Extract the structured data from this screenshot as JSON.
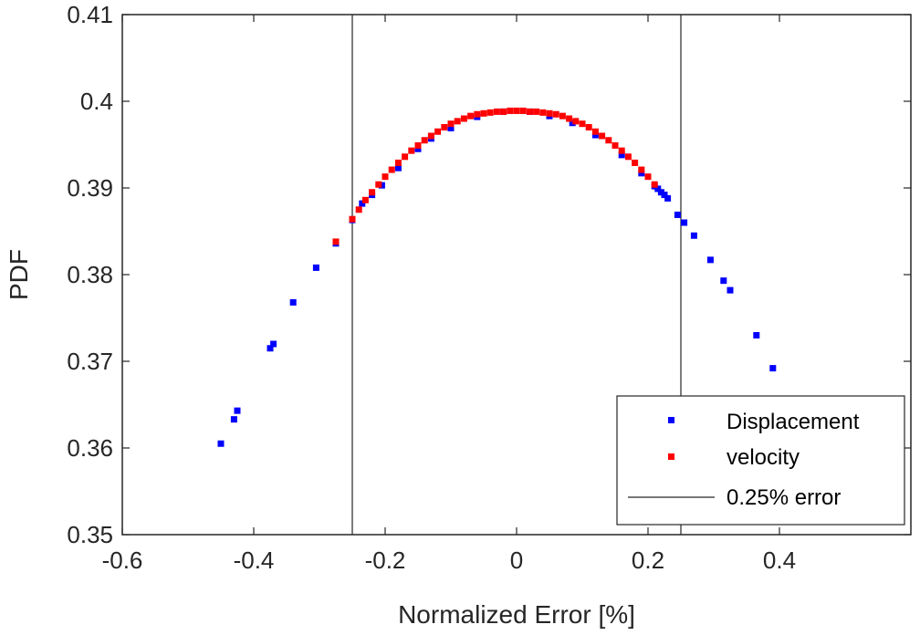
{
  "chart_data": {
    "type": "scatter",
    "title": "",
    "xlabel": "Normalized Error [%]",
    "ylabel": "PDF",
    "xlim": [
      -0.6,
      0.6
    ],
    "ylim": [
      0.35,
      0.41
    ],
    "xticks": [
      -0.6,
      -0.4,
      -0.2,
      0,
      0.2,
      0.4
    ],
    "xtick_labels": [
      "-0.6",
      "-0.4",
      "-0.2",
      "0",
      "0.2",
      "0.4"
    ],
    "yticks": [
      0.35,
      0.36,
      0.37,
      0.38,
      0.39,
      0.4,
      0.41
    ],
    "ytick_labels": [
      "0.35",
      "0.36",
      "0.37",
      "0.38",
      "0.39",
      "0.4",
      "0.41"
    ],
    "grid": false,
    "legend_position": "bottom-right",
    "colors": {
      "displacement": "#0000ff",
      "velocity": "#ff0000",
      "error_line": "#262626"
    },
    "series": [
      {
        "name": "Displacement",
        "marker": "square",
        "x": [
          -0.45,
          -0.43,
          -0.425,
          -0.375,
          -0.37,
          -0.34,
          -0.305,
          -0.275,
          -0.25,
          -0.235,
          -0.22,
          -0.205,
          -0.18,
          -0.15,
          -0.13,
          -0.1,
          -0.06,
          -0.02,
          0.02,
          0.05,
          0.085,
          0.12,
          0.16,
          0.19,
          0.21,
          0.215,
          0.22,
          0.225,
          0.23,
          0.245,
          0.255,
          0.27,
          0.295,
          0.315,
          0.325,
          0.365,
          0.39
        ],
        "y": [
          0.3605,
          0.3633,
          0.3643,
          0.3715,
          0.372,
          0.3768,
          0.3808,
          0.3836,
          0.3863,
          0.3882,
          0.3892,
          0.3903,
          0.3923,
          0.3945,
          0.3957,
          0.3969,
          0.3982,
          0.3988,
          0.3988,
          0.3983,
          0.3975,
          0.3961,
          0.3938,
          0.3917,
          0.3902,
          0.3899,
          0.3895,
          0.3892,
          0.3888,
          0.3869,
          0.386,
          0.3845,
          0.3817,
          0.3793,
          0.3782,
          0.373,
          0.3692
        ]
      },
      {
        "name": "velocity",
        "marker": "square",
        "x": [
          -0.275,
          -0.25,
          -0.24,
          -0.23,
          -0.22,
          -0.21,
          -0.2,
          -0.19,
          -0.18,
          -0.17,
          -0.16,
          -0.15,
          -0.14,
          -0.13,
          -0.12,
          -0.11,
          -0.1,
          -0.09,
          -0.08,
          -0.07,
          -0.06,
          -0.05,
          -0.04,
          -0.03,
          -0.02,
          -0.01,
          0,
          0.01,
          0.02,
          0.03,
          0.04,
          0.05,
          0.06,
          0.07,
          0.08,
          0.09,
          0.1,
          0.11,
          0.12,
          0.13,
          0.14,
          0.15,
          0.16,
          0.17,
          0.18,
          0.19,
          0.2,
          0.21
        ],
        "y": [
          0.3838,
          0.3864,
          0.3875,
          0.3886,
          0.3895,
          0.3904,
          0.3913,
          0.3921,
          0.3929,
          0.3936,
          0.3943,
          0.3949,
          0.3955,
          0.396,
          0.3965,
          0.397,
          0.3974,
          0.3977,
          0.398,
          0.3983,
          0.3985,
          0.3986,
          0.3987,
          0.3988,
          0.3988,
          0.3989,
          0.3989,
          0.3989,
          0.3988,
          0.3988,
          0.3987,
          0.3986,
          0.3985,
          0.3983,
          0.398,
          0.3977,
          0.3974,
          0.397,
          0.3965,
          0.396,
          0.3955,
          0.3949,
          0.3943,
          0.3936,
          0.3929,
          0.3921,
          0.3913,
          0.3904
        ]
      }
    ],
    "reference_lines": {
      "name": "0.25% error",
      "x": [
        -0.25,
        0.25
      ]
    },
    "legend": [
      "Displacement",
      "velocity",
      "0.25% error"
    ]
  }
}
